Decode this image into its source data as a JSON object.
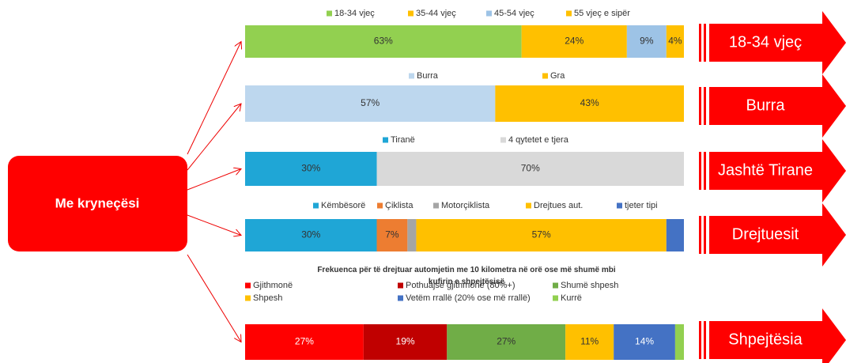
{
  "center_label": "Me kryneçësi",
  "chart_data": [
    {
      "type": "bar",
      "orientation": "horizontal",
      "stacked": true,
      "side_label": "18-34 vjeç",
      "xlim": [
        0,
        100
      ],
      "series": [
        {
          "name": "18-34 vjeç",
          "color": "#92d050",
          "values": [
            63
          ],
          "value_labels": [
            "63%"
          ]
        },
        {
          "name": "35-44 vjeç",
          "color": "#ffc000",
          "values": [
            24
          ],
          "value_labels": [
            "24%"
          ]
        },
        {
          "name": "45-54 vjeç",
          "color": "#9dc3e6",
          "values": [
            9
          ],
          "value_labels": [
            "9%"
          ]
        },
        {
          "name": "55 vjeç e sipër",
          "color": "#ffc000",
          "values": [
            4
          ],
          "value_labels": [
            "4%"
          ]
        }
      ]
    },
    {
      "type": "bar",
      "orientation": "horizontal",
      "stacked": true,
      "side_label": "Burra",
      "xlim": [
        0,
        100
      ],
      "series": [
        {
          "name": "Burra",
          "color": "#bdd7ee",
          "values": [
            57
          ],
          "value_labels": [
            "57%"
          ]
        },
        {
          "name": "Gra",
          "color": "#ffc000",
          "values": [
            43
          ],
          "value_labels": [
            "43%"
          ]
        }
      ]
    },
    {
      "type": "bar",
      "orientation": "horizontal",
      "stacked": true,
      "side_label": "Jashtë Tirane",
      "xlim": [
        0,
        100
      ],
      "series": [
        {
          "name": "Tiranë",
          "color": "#1fa6d6",
          "values": [
            30
          ],
          "value_labels": [
            "30%"
          ]
        },
        {
          "name": "4 qytetet e tjera",
          "color": "#d9d9d9",
          "values": [
            70
          ],
          "value_labels": [
            "70%"
          ]
        }
      ]
    },
    {
      "type": "bar",
      "orientation": "horizontal",
      "stacked": true,
      "side_label": "Drejtuesit",
      "xlim": [
        0,
        100
      ],
      "series": [
        {
          "name": "Këmbësorë",
          "color": "#1fa6d6",
          "values": [
            30
          ],
          "value_labels": [
            "30%"
          ]
        },
        {
          "name": "Çiklista",
          "color": "#ed7d31",
          "values": [
            7
          ],
          "value_labels": [
            "7%"
          ]
        },
        {
          "name": "Motorçiklista",
          "color": "#a5a5a5",
          "values": [
            2
          ],
          "value_labels": [
            null
          ]
        },
        {
          "name": "Drejtues aut.",
          "color": "#ffc000",
          "values": [
            57
          ],
          "value_labels": [
            "57%"
          ]
        },
        {
          "name": "tjeter tipi",
          "color": "#4472c4",
          "values": [
            4
          ],
          "value_labels": [
            null
          ]
        }
      ]
    },
    {
      "type": "bar",
      "orientation": "horizontal",
      "stacked": true,
      "side_label": "Shpejtësia",
      "xlim": [
        0,
        100
      ],
      "title": "Frekuenca për të drejtuar automjetin me 10 kilometra në orë ose më shumë mbi kufirin e shpejtësisë",
      "series": [
        {
          "name": "Gjithmonë",
          "color": "#ff0000",
          "values": [
            27
          ],
          "value_labels": [
            "27%"
          ]
        },
        {
          "name": "Pothuajse gjithmonë (80%+)",
          "color": "#c00000",
          "values": [
            19
          ],
          "value_labels": [
            "19%"
          ]
        },
        {
          "name": "Shumë shpesh",
          "color": "#70ad47",
          "values": [
            27
          ],
          "value_labels": [
            "27%"
          ]
        },
        {
          "name": "Shpesh",
          "color": "#ffc000",
          "values": [
            11
          ],
          "value_labels": [
            "11%"
          ]
        },
        {
          "name": "Vetëm rrallë (20% ose më rrallë)",
          "color": "#4472c4",
          "values": [
            14
          ],
          "value_labels": [
            "14%"
          ]
        },
        {
          "name": "Kurrë",
          "color": "#92d050",
          "values": [
            2
          ],
          "value_labels": [
            null
          ]
        }
      ]
    }
  ]
}
